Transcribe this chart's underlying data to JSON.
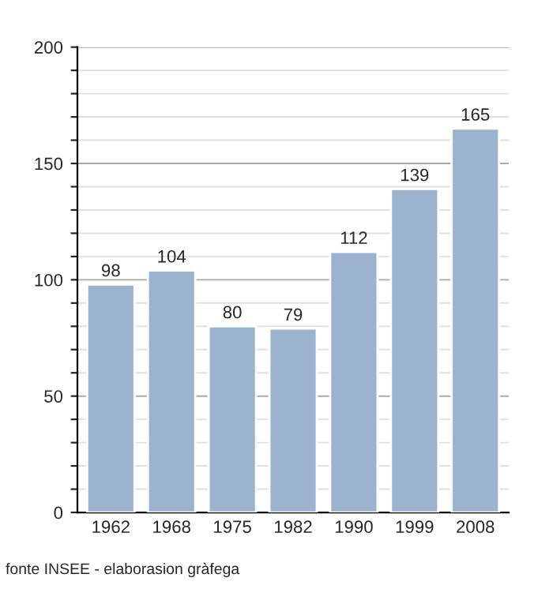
{
  "chart_data": {
    "type": "bar",
    "categories": [
      "1962",
      "1968",
      "1975",
      "1982",
      "1990",
      "1999",
      "2008"
    ],
    "values": [
      98,
      104,
      80,
      79,
      112,
      139,
      165
    ],
    "color": "#9bb3cf",
    "data_labels": true,
    "ylim": [
      0,
      200
    ],
    "yticks": [
      0,
      {
        "value": 10,
        "label": null
      },
      {
        "value": 20,
        "label": null
      },
      {
        "value": 30,
        "label": null
      },
      {
        "value": 40,
        "label": null
      },
      50,
      {
        "value": 60,
        "label": null
      },
      {
        "value": 70,
        "label": null
      },
      {
        "value": 80,
        "label": null
      },
      {
        "value": 90,
        "label": null
      },
      100,
      {
        "value": 110,
        "label": null
      },
      {
        "value": 120,
        "label": null
      },
      {
        "value": 130,
        "label": null
      },
      {
        "value": 140,
        "label": null
      },
      150,
      {
        "value": 160,
        "label": null
      },
      {
        "value": 170,
        "label": null
      },
      {
        "value": 180,
        "label": null
      },
      {
        "value": 190,
        "label": null
      },
      200
    ],
    "grid": "y",
    "annotations": [
      "fonte INSEE - elaborasion gràfega"
    ]
  }
}
